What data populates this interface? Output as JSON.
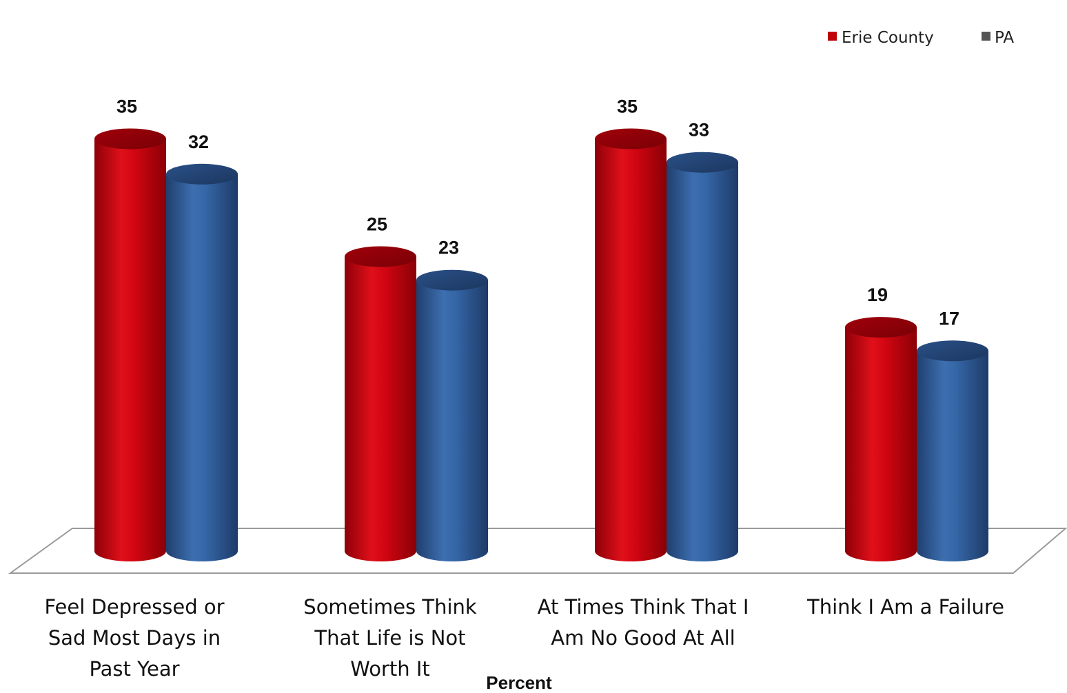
{
  "chart_data": {
    "type": "bar",
    "style": "3d-cylinder",
    "categories": [
      [
        "Feel Depressed or",
        "Sad Most Days in",
        "Past Year"
      ],
      [
        "Sometimes Think",
        "That Life is Not",
        "Worth It"
      ],
      [
        "At Times Think That I",
        "Am No Good At All"
      ],
      [
        "Think I Am a Failure"
      ]
    ],
    "series": [
      {
        "name": "Erie County",
        "values": [
          35,
          25,
          35,
          19
        ],
        "color": "#c0000a"
      },
      {
        "name": "PA",
        "values": [
          32,
          23,
          33,
          17
        ],
        "color": "#2f5d9b"
      }
    ],
    "xlabel": "Percent",
    "legend_position": "top-right",
    "legend_swatch_colors": [
      "#c0000a",
      "#555555"
    ],
    "grid": false,
    "ylim": [
      0,
      40
    ]
  }
}
